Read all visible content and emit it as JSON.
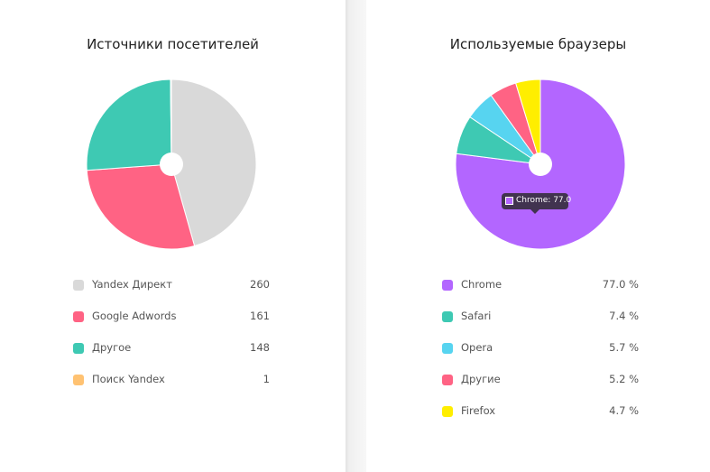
{
  "chart_data": [
    {
      "type": "pie",
      "title": "Источники посетителей",
      "categories": [
        "Yandex Директ",
        "Google Adwords",
        "Другое",
        "Поиск Yandex"
      ],
      "values": [
        260,
        161,
        148,
        1
      ],
      "value_labels": [
        "260",
        "161",
        "148",
        "1"
      ],
      "colors": [
        "#d9d9d9",
        "#ff6384",
        "#3ec9b3",
        "#ffc272"
      ],
      "start": "top",
      "direction": "clockwise",
      "center_hole": true
    },
    {
      "type": "pie",
      "title": "Используемые браузеры",
      "categories": [
        "Chrome",
        "Safari",
        "Opera",
        "Другие",
        "Firefox"
      ],
      "values": [
        77.0,
        7.4,
        5.7,
        5.2,
        4.7
      ],
      "value_labels": [
        "77.0 %",
        "7.4 %",
        "5.7 %",
        "5.2 %",
        "4.7 %"
      ],
      "colors": [
        "#b366ff",
        "#3ec9b3",
        "#57d4f0",
        "#ff6384",
        "#ffee00"
      ],
      "start": "top",
      "direction": "clockwise",
      "center_hole": true,
      "tooltip": {
        "text": "Chrome: 77.0",
        "color": "#b366ff"
      }
    }
  ]
}
